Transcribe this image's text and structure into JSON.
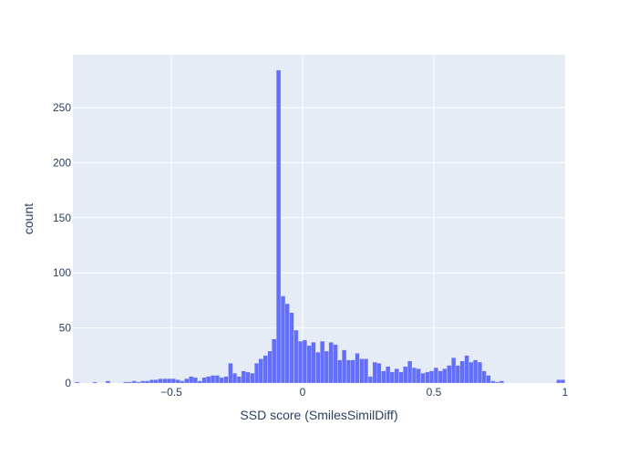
{
  "chart_data": {
    "type": "bar",
    "subtype": "histogram",
    "title": "",
    "xlabel": "SSD score (SmilesSimilDiff)",
    "ylabel": "count",
    "xlim": [
      -0.875,
      1.0
    ],
    "ylim": [
      0,
      298
    ],
    "bin_width": 0.0167,
    "x_ticks": [
      -0.5,
      0,
      0.5,
      1
    ],
    "x_tick_labels": [
      "−0.5",
      "0",
      "0.5",
      "1"
    ],
    "y_ticks": [
      0,
      50,
      100,
      150,
      200,
      250
    ],
    "y_tick_labels": [
      "0",
      "50",
      "100",
      "150",
      "200",
      "250"
    ],
    "grid": true,
    "legend": "none",
    "colors": {
      "bar": "#636efa",
      "plot_bg": "#e5ecf6",
      "grid": "#ffffff",
      "text": "#2a3f5f"
    },
    "bins": [
      {
        "x": -0.867,
        "count": 1
      },
      {
        "x": -0.8,
        "count": 1
      },
      {
        "x": -0.75,
        "count": 2
      },
      {
        "x": -0.683,
        "count": 1
      },
      {
        "x": -0.667,
        "count": 1
      },
      {
        "x": -0.65,
        "count": 2
      },
      {
        "x": -0.633,
        "count": 1
      },
      {
        "x": -0.617,
        "count": 2
      },
      {
        "x": -0.6,
        "count": 2
      },
      {
        "x": -0.583,
        "count": 3
      },
      {
        "x": -0.567,
        "count": 3
      },
      {
        "x": -0.55,
        "count": 4
      },
      {
        "x": -0.533,
        "count": 4
      },
      {
        "x": -0.517,
        "count": 4
      },
      {
        "x": -0.5,
        "count": 4
      },
      {
        "x": -0.483,
        "count": 3
      },
      {
        "x": -0.467,
        "count": 2
      },
      {
        "x": -0.45,
        "count": 4
      },
      {
        "x": -0.433,
        "count": 6
      },
      {
        "x": -0.417,
        "count": 5
      },
      {
        "x": -0.4,
        "count": 2
      },
      {
        "x": -0.383,
        "count": 5
      },
      {
        "x": -0.367,
        "count": 6
      },
      {
        "x": -0.35,
        "count": 7
      },
      {
        "x": -0.333,
        "count": 7
      },
      {
        "x": -0.317,
        "count": 5
      },
      {
        "x": -0.3,
        "count": 6
      },
      {
        "x": -0.283,
        "count": 18
      },
      {
        "x": -0.267,
        "count": 9
      },
      {
        "x": -0.25,
        "count": 6
      },
      {
        "x": -0.233,
        "count": 11
      },
      {
        "x": -0.217,
        "count": 10
      },
      {
        "x": -0.2,
        "count": 9
      },
      {
        "x": -0.183,
        "count": 18
      },
      {
        "x": -0.167,
        "count": 22
      },
      {
        "x": -0.15,
        "count": 25
      },
      {
        "x": -0.133,
        "count": 29
      },
      {
        "x": -0.117,
        "count": 40
      },
      {
        "x": -0.1,
        "count": 284
      },
      {
        "x": -0.083,
        "count": 79
      },
      {
        "x": -0.067,
        "count": 72
      },
      {
        "x": -0.05,
        "count": 64
      },
      {
        "x": -0.033,
        "count": 48
      },
      {
        "x": -0.017,
        "count": 38
      },
      {
        "x": 0.0,
        "count": 39
      },
      {
        "x": 0.017,
        "count": 34
      },
      {
        "x": 0.033,
        "count": 37
      },
      {
        "x": 0.05,
        "count": 28
      },
      {
        "x": 0.067,
        "count": 38
      },
      {
        "x": 0.083,
        "count": 29
      },
      {
        "x": 0.1,
        "count": 37
      },
      {
        "x": 0.117,
        "count": 35
      },
      {
        "x": 0.133,
        "count": 21
      },
      {
        "x": 0.15,
        "count": 30
      },
      {
        "x": 0.167,
        "count": 21
      },
      {
        "x": 0.183,
        "count": 21
      },
      {
        "x": 0.2,
        "count": 27
      },
      {
        "x": 0.217,
        "count": 22
      },
      {
        "x": 0.233,
        "count": 22
      },
      {
        "x": 0.25,
        "count": 6
      },
      {
        "x": 0.267,
        "count": 19
      },
      {
        "x": 0.283,
        "count": 18
      },
      {
        "x": 0.3,
        "count": 11
      },
      {
        "x": 0.317,
        "count": 15
      },
      {
        "x": 0.333,
        "count": 10
      },
      {
        "x": 0.35,
        "count": 13
      },
      {
        "x": 0.367,
        "count": 10
      },
      {
        "x": 0.383,
        "count": 15
      },
      {
        "x": 0.4,
        "count": 20
      },
      {
        "x": 0.417,
        "count": 14
      },
      {
        "x": 0.433,
        "count": 13
      },
      {
        "x": 0.45,
        "count": 9
      },
      {
        "x": 0.467,
        "count": 10
      },
      {
        "x": 0.483,
        "count": 11
      },
      {
        "x": 0.5,
        "count": 14
      },
      {
        "x": 0.517,
        "count": 11
      },
      {
        "x": 0.533,
        "count": 13
      },
      {
        "x": 0.55,
        "count": 16
      },
      {
        "x": 0.567,
        "count": 23
      },
      {
        "x": 0.583,
        "count": 16
      },
      {
        "x": 0.6,
        "count": 20
      },
      {
        "x": 0.617,
        "count": 25
      },
      {
        "x": 0.633,
        "count": 19
      },
      {
        "x": 0.65,
        "count": 21
      },
      {
        "x": 0.667,
        "count": 19
      },
      {
        "x": 0.683,
        "count": 11
      },
      {
        "x": 0.7,
        "count": 7
      },
      {
        "x": 0.717,
        "count": 2
      },
      {
        "x": 0.733,
        "count": 1
      },
      {
        "x": 0.75,
        "count": 2
      },
      {
        "x": 0.967,
        "count": 3
      },
      {
        "x": 0.983,
        "count": 3
      }
    ]
  }
}
